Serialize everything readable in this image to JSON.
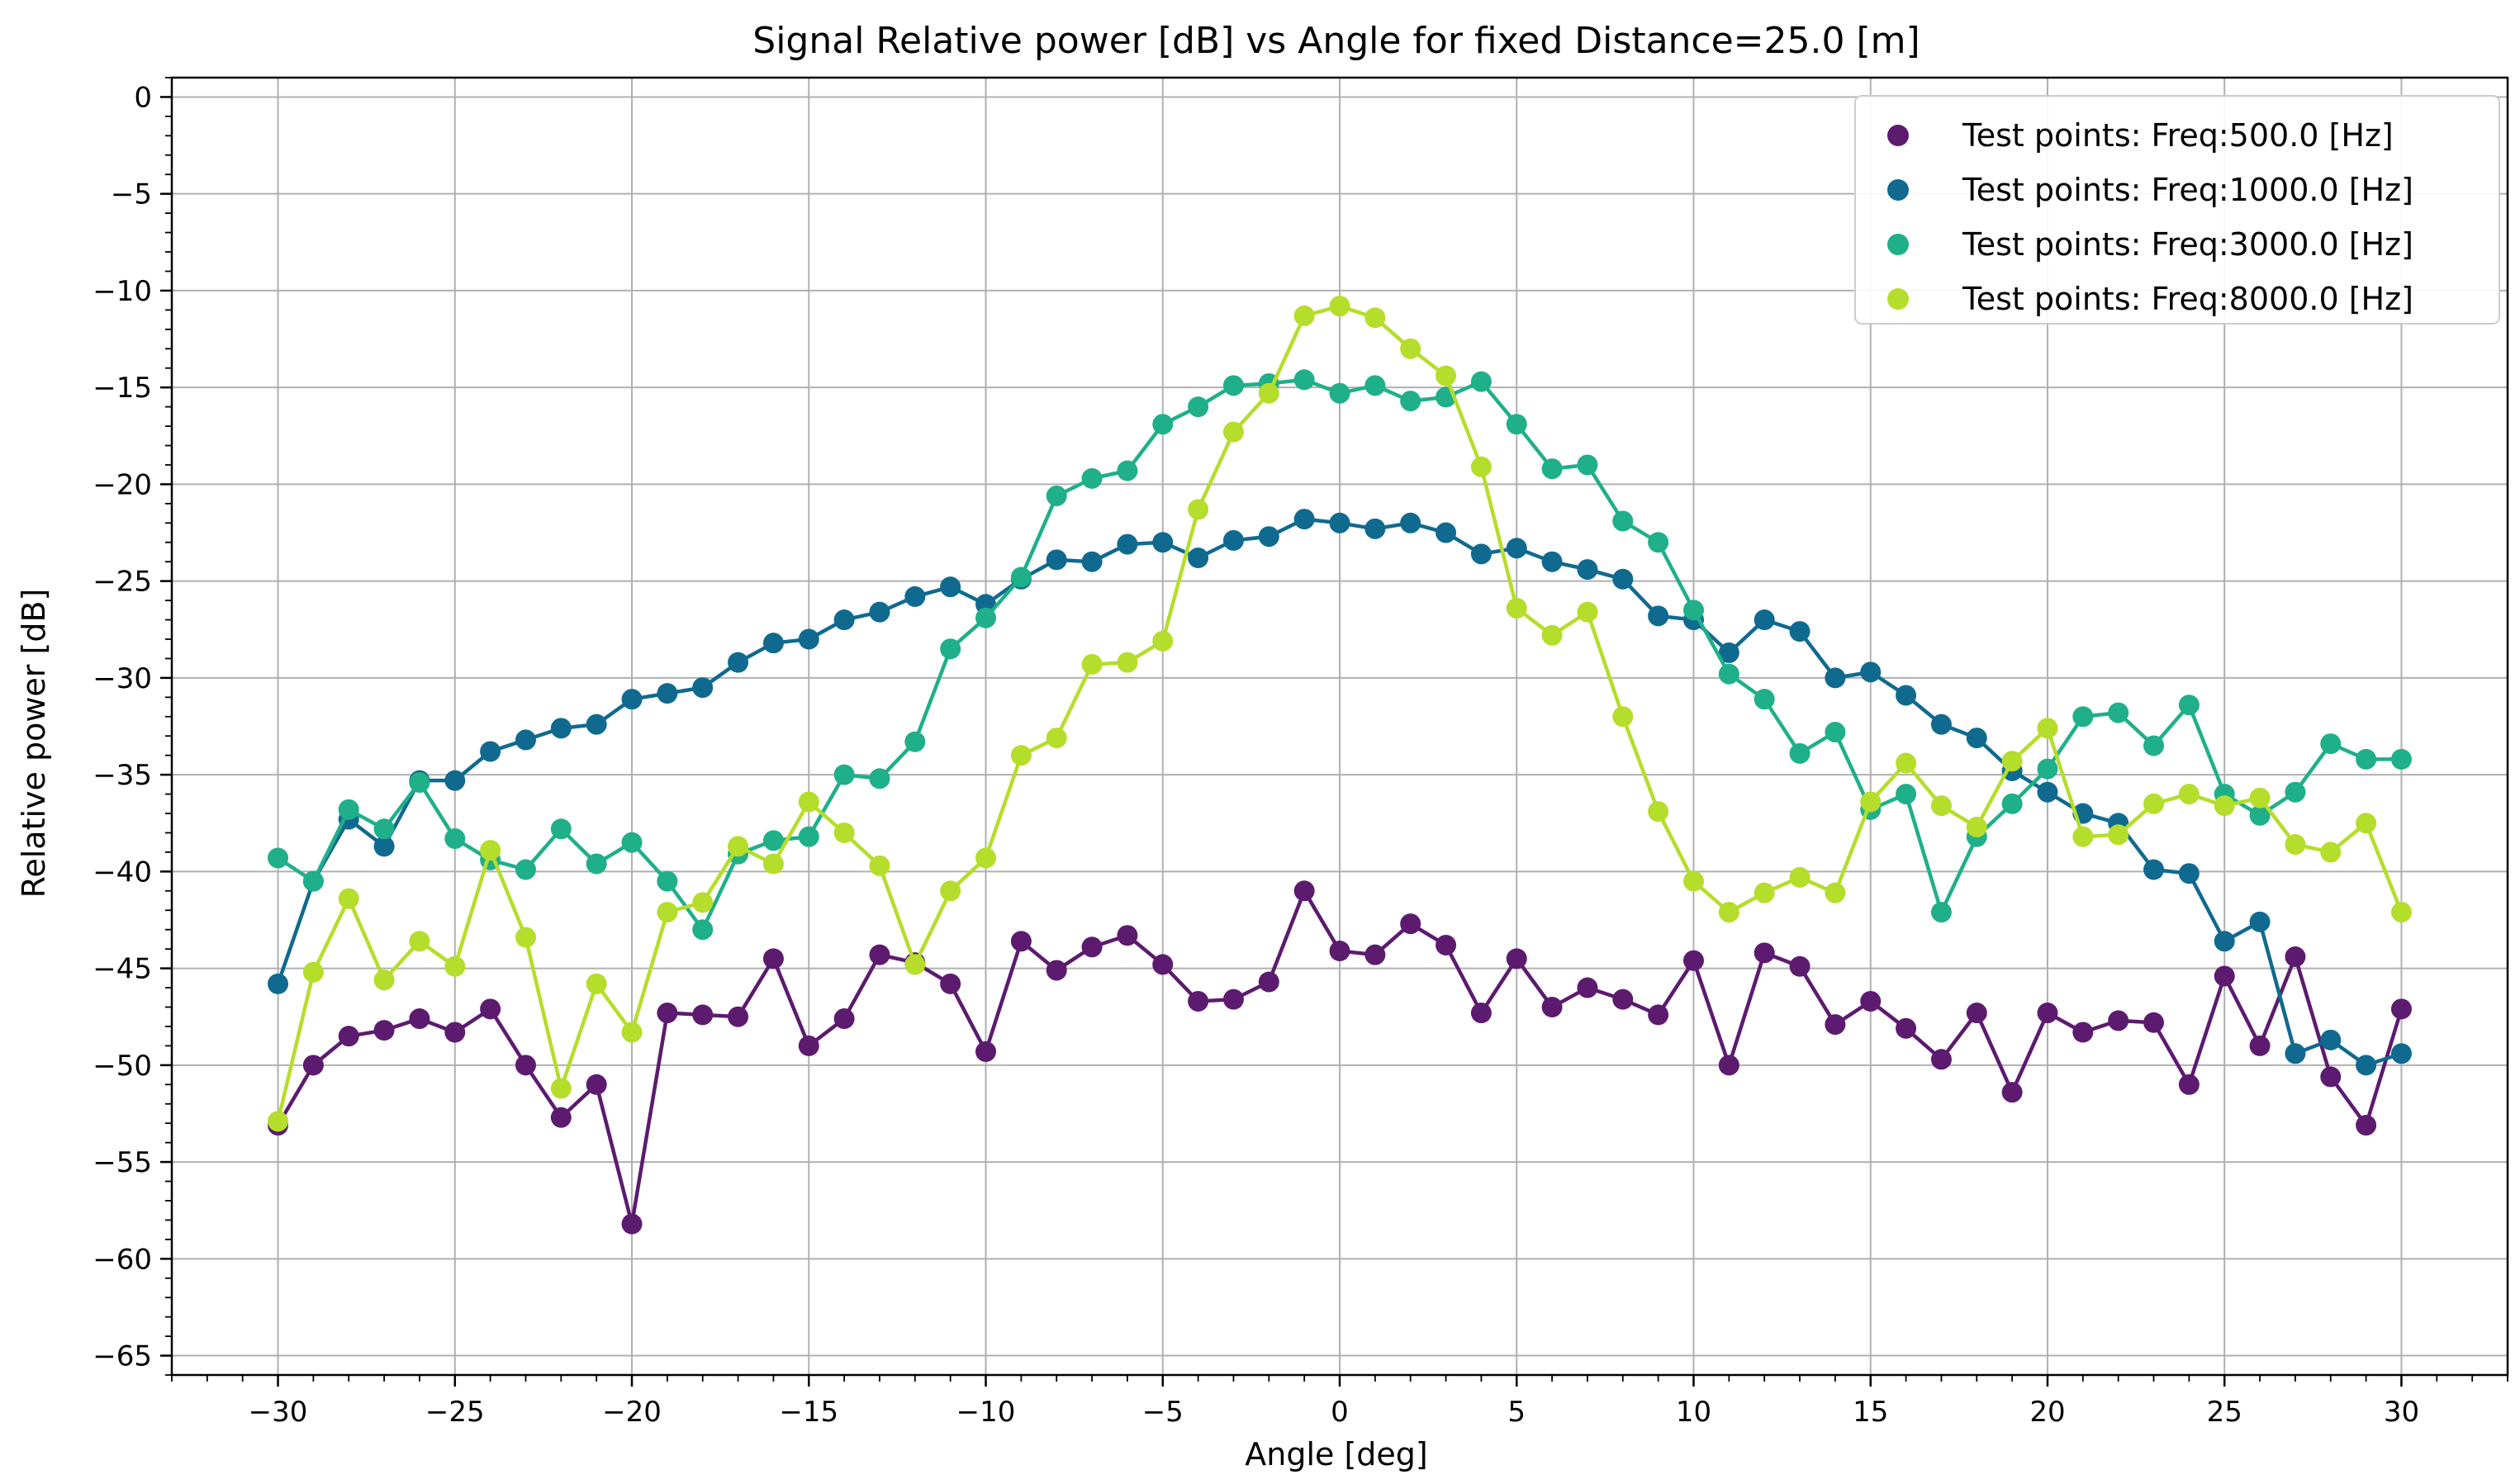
{
  "chart_data": {
    "type": "line",
    "title": "Signal Relative power [dB] vs Angle for fixed Distance=25.0 [m]",
    "xlabel": "Angle [deg]",
    "ylabel": "Relative power [dB]",
    "xlim": [
      -33,
      33
    ],
    "ylim": [
      -66,
      1
    ],
    "xticks": [
      -30,
      -25,
      -20,
      -15,
      -10,
      -5,
      0,
      5,
      10,
      15,
      20,
      25,
      30
    ],
    "yticks": [
      0,
      -5,
      -10,
      -15,
      -20,
      -25,
      -30,
      -35,
      -40,
      -45,
      -50,
      -55,
      -60,
      -65
    ],
    "grid": true,
    "legend_position": "top-right",
    "x": [
      -30,
      -29,
      -28,
      -27,
      -26,
      -25,
      -24,
      -23,
      -22,
      -21,
      -20,
      -19,
      -18,
      -17,
      -16,
      -15,
      -14,
      -13,
      -12,
      -11,
      -10,
      -9,
      -8,
      -7,
      -6,
      -5,
      -4,
      -3,
      -2,
      -1,
      0,
      1,
      2,
      3,
      4,
      5,
      6,
      7,
      8,
      9,
      10,
      11,
      12,
      13,
      14,
      15,
      16,
      17,
      18,
      19,
      20,
      21,
      22,
      23,
      24,
      25,
      26,
      27,
      28,
      29,
      30
    ],
    "series": [
      {
        "name": "Test points: Freq:500.0 [Hz]",
        "color": "#5c1b6f",
        "values": [
          -53.1,
          -50.0,
          -48.5,
          -48.2,
          -47.6,
          -48.3,
          -47.1,
          -50.0,
          -52.7,
          -51.0,
          -58.2,
          -47.3,
          -47.4,
          -47.5,
          -44.5,
          -49.0,
          -47.6,
          -44.3,
          -44.7,
          -45.8,
          -49.3,
          -43.6,
          -45.1,
          -43.9,
          -43.3,
          -44.8,
          -46.7,
          -46.6,
          -45.7,
          -41.0,
          -44.1,
          -44.3,
          -42.7,
          -43.8,
          -47.3,
          -44.5,
          -47.0,
          -46.0,
          -46.6,
          -47.4,
          -44.6,
          -50.0,
          -44.2,
          -44.9,
          -47.9,
          -46.7,
          -48.1,
          -49.7,
          -47.3,
          -51.4,
          -47.3,
          -48.3,
          -47.7,
          -47.8,
          -51.0,
          -45.4,
          -49.0,
          -44.4,
          -50.6,
          -53.1,
          -47.1
        ]
      },
      {
        "name": "Test points: Freq:1000.0 [Hz]",
        "color": "#106a8f",
        "values": [
          -45.8,
          -40.5,
          -37.3,
          -38.7,
          -35.3,
          -35.3,
          -33.8,
          -33.2,
          -32.6,
          -32.4,
          -31.1,
          -30.8,
          -30.5,
          -29.2,
          -28.2,
          -28.0,
          -27.0,
          -26.6,
          -25.8,
          -25.3,
          -26.2,
          -24.9,
          -23.9,
          -24.0,
          -23.1,
          -23.0,
          -23.8,
          -22.9,
          -22.7,
          -21.8,
          -22.0,
          -22.3,
          -22.0,
          -22.5,
          -23.6,
          -23.3,
          -24.0,
          -24.4,
          -24.9,
          -26.8,
          -27.0,
          -28.7,
          -27.0,
          -27.6,
          -30.0,
          -29.7,
          -30.9,
          -32.4,
          -33.1,
          -34.8,
          -35.9,
          -37.0,
          -37.5,
          -39.9,
          -40.1,
          -43.6,
          -42.6,
          -49.4,
          -48.7,
          -50.0,
          -49.4
        ]
      },
      {
        "name": "Test points: Freq:3000.0 [Hz]",
        "color": "#1faf89",
        "values": [
          -39.3,
          -40.5,
          -36.8,
          -37.8,
          -35.4,
          -38.3,
          -39.4,
          -39.9,
          -37.8,
          -39.6,
          -38.5,
          -40.5,
          -43.0,
          -39.1,
          -38.4,
          -38.2,
          -35.0,
          -35.2,
          -33.3,
          -28.5,
          -26.9,
          -24.8,
          -20.6,
          -19.7,
          -19.3,
          -16.9,
          -16.0,
          -14.9,
          -14.8,
          -14.6,
          -15.3,
          -14.9,
          -15.7,
          -15.5,
          -14.7,
          -16.9,
          -19.2,
          -19.0,
          -21.9,
          -23.0,
          -26.5,
          -29.8,
          -31.1,
          -33.9,
          -32.8,
          -36.8,
          -36.0,
          -42.1,
          -38.2,
          -36.5,
          -34.7,
          -32.0,
          -31.8,
          -33.5,
          -31.4,
          -36.0,
          -37.1,
          -35.9,
          -33.4,
          -34.2,
          -34.2
        ]
      },
      {
        "name": "Test points: Freq:8000.0 [Hz]",
        "color": "#b5dd2b",
        "values": [
          -52.9,
          -45.2,
          -41.4,
          -45.6,
          -43.6,
          -44.9,
          -38.9,
          -43.4,
          -51.2,
          -45.8,
          -48.3,
          -42.1,
          -41.6,
          -38.7,
          -39.6,
          -36.4,
          -38.0,
          -39.7,
          -44.8,
          -41.0,
          -39.3,
          -34.0,
          -33.1,
          -29.3,
          -29.2,
          -28.1,
          -21.3,
          -17.3,
          -15.3,
          -11.3,
          -10.8,
          -11.4,
          -13.0,
          -14.4,
          -19.1,
          -26.4,
          -27.8,
          -26.6,
          -32.0,
          -36.9,
          -40.5,
          -42.1,
          -41.1,
          -40.3,
          -41.1,
          -36.4,
          -34.4,
          -36.6,
          -37.7,
          -34.3,
          -32.6,
          -38.2,
          -38.1,
          -36.5,
          -36.0,
          -36.6,
          -36.2,
          -38.6,
          -39.0,
          -37.5,
          -42.1
        ]
      }
    ]
  }
}
